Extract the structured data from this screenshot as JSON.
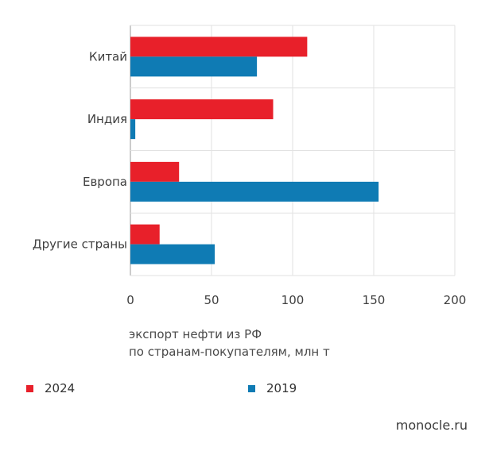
{
  "chart_data": {
    "type": "bar",
    "orientation": "horizontal",
    "categories": [
      "Китай",
      "Индия",
      "Европа",
      "Другие страны"
    ],
    "series": [
      {
        "name": "2024",
        "values": [
          109,
          88,
          30,
          18
        ],
        "color": "#e8202a"
      },
      {
        "name": "2019",
        "values": [
          78,
          3,
          153,
          52
        ],
        "color": "#0f7bb4"
      }
    ],
    "xlim": [
      0,
      200
    ],
    "xticks": [
      "0",
      "50",
      "100",
      "150",
      "200"
    ],
    "xticks_values": [
      0,
      50,
      100,
      150,
      200
    ],
    "grid": true,
    "legend": "bottom"
  },
  "caption": {
    "line1": "экспорт нефти из РФ",
    "line2": "по странам-покупателям, млн т"
  },
  "source": "monocle.ru"
}
